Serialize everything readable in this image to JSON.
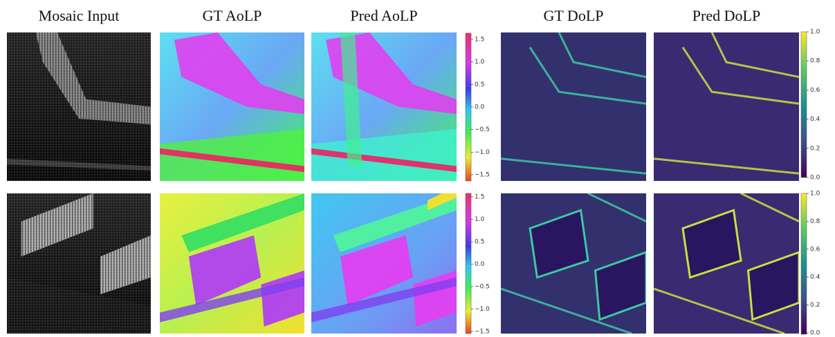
{
  "column_titles": [
    "Mosaic Input",
    "GT AoLP",
    "Pred AoLP",
    "GT DoLP",
    "Pred DoLP"
  ],
  "rows": [
    {
      "aolp_colorbar": {
        "ticks": [
          "1.5",
          "1.0",
          "0.5",
          "0.0",
          "−0.5",
          "−1.0",
          "−1.5"
        ]
      },
      "dolp_colorbar": {
        "ticks": [
          "1.0",
          "0.8",
          "0.6",
          "0.4",
          "0.2",
          "0.0"
        ]
      }
    },
    {
      "aolp_colorbar": {
        "ticks": [
          "1.5",
          "1.0",
          "0.5",
          "0.0",
          "−0.5",
          "−1.0",
          "−1.5"
        ]
      },
      "dolp_colorbar": {
        "ticks": [
          "1.0",
          "0.8",
          "0.6",
          "0.4",
          "0.2",
          "0.0"
        ]
      }
    }
  ]
}
